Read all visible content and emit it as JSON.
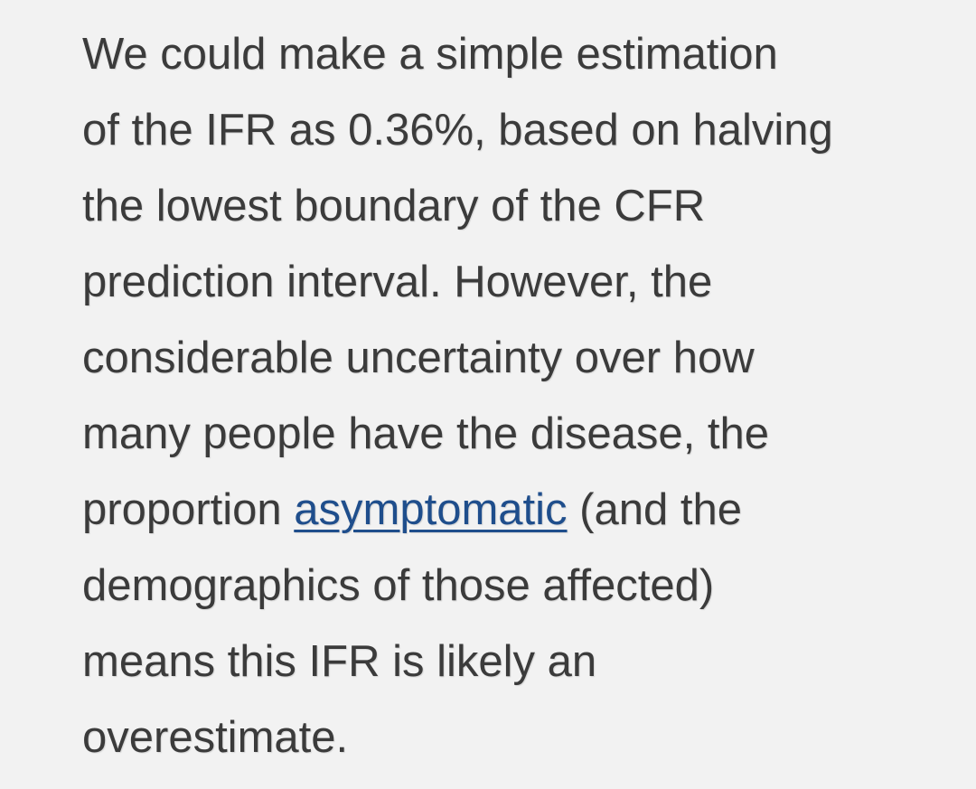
{
  "article": {
    "lines": [
      "We could make a simple estimation",
      "of the IFR as 0.36%, based on halving",
      "the lowest boundary of the CFR",
      "prediction interval. However, the",
      "considerable uncertainty over how",
      "many people have the disease,  the"
    ],
    "line7_before": "proportion ",
    "link_text": "asymptomatic",
    "line7_after": " (and the",
    "lines_after": [
      "demographics of those affected)",
      "means this IFR is likely an",
      "overestimate."
    ]
  },
  "colors": {
    "background": "#f2f2f2",
    "text": "#3b3b3b",
    "link": "#1f4e8c"
  }
}
